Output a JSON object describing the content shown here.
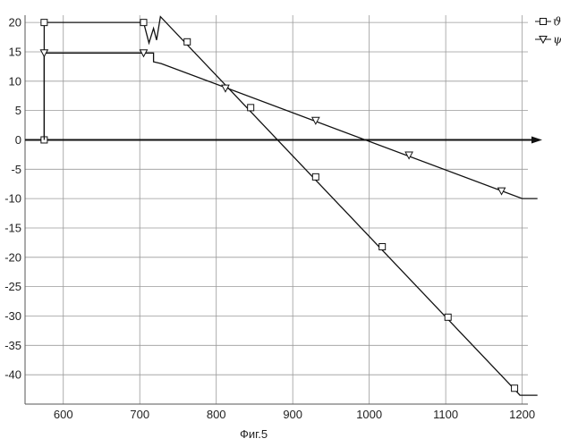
{
  "chart_data": {
    "type": "line",
    "title": "",
    "xlabel": "",
    "ylabel": "",
    "xlim": [
      550,
      1225
    ],
    "ylim": [
      -45,
      22
    ],
    "x_ticks": [
      600,
      700,
      800,
      900,
      1000,
      1100,
      1200
    ],
    "y_ticks": [
      20,
      15,
      10,
      5,
      0,
      -5,
      -10,
      -15,
      -20,
      -25,
      -30,
      -35,
      -40
    ],
    "grid": true,
    "legend_position": "top-right",
    "series": [
      {
        "name": "ϑ",
        "marker": "square",
        "line": [
          [
            575,
            0
          ],
          [
            575,
            20
          ],
          [
            705,
            20
          ],
          [
            712,
            16.5
          ],
          [
            718,
            19
          ],
          [
            722,
            17
          ],
          [
            727,
            21
          ],
          [
            1190,
            -42.5
          ],
          [
            1197,
            -43.5
          ],
          [
            1220,
            -43.5
          ]
        ],
        "markers": [
          [
            575,
            0
          ],
          [
            575,
            20
          ],
          [
            705,
            20
          ],
          [
            762,
            16.7
          ],
          [
            845,
            5.5
          ],
          [
            930,
            -6.3
          ],
          [
            1017,
            -18.2
          ],
          [
            1103,
            -30.2
          ],
          [
            1190,
            -42.3
          ]
        ]
      },
      {
        "name": "ψ",
        "marker": "triangle-down",
        "line": [
          [
            575,
            0
          ],
          [
            575,
            14.8
          ],
          [
            705,
            14.8
          ],
          [
            718,
            14.8
          ],
          [
            718,
            13.3
          ],
          [
            728,
            13
          ],
          [
            1200,
            -10
          ],
          [
            1220,
            -10
          ]
        ],
        "markers": [
          [
            575,
            14.8
          ],
          [
            705,
            14.8
          ],
          [
            812,
            8.8
          ],
          [
            930,
            3.3
          ],
          [
            1052,
            -2.6
          ],
          [
            1173,
            -8.7
          ]
        ]
      }
    ]
  },
  "caption": "Фиг.5"
}
